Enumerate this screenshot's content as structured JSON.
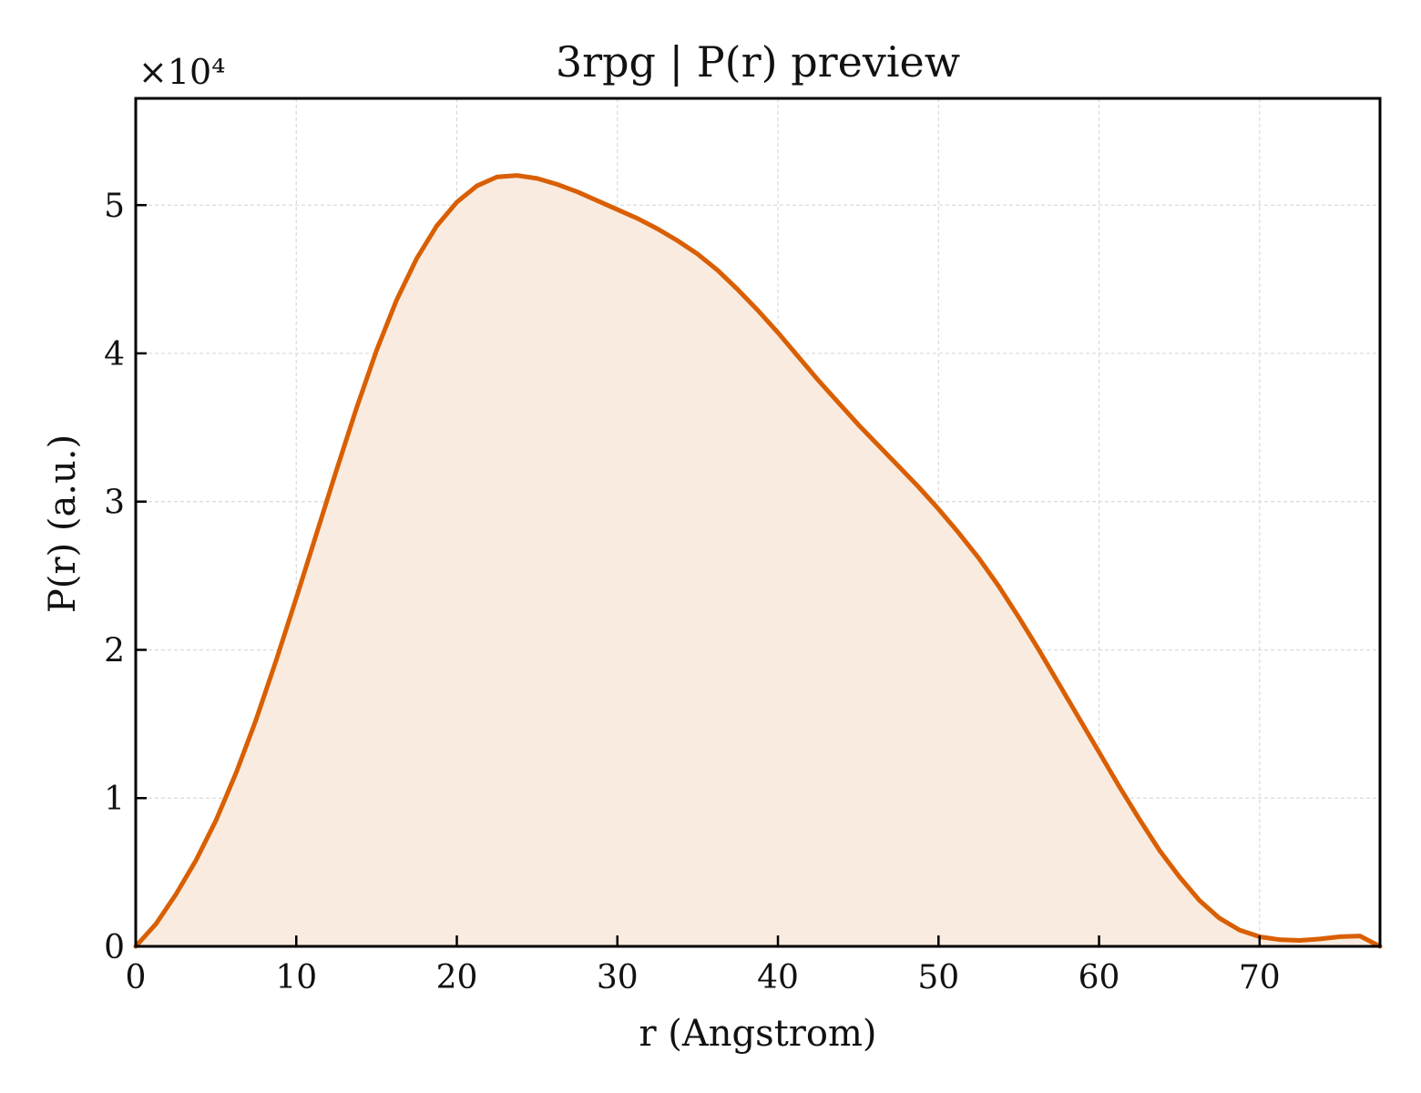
{
  "chart_data": {
    "type": "area",
    "title": "3rpg | P(r) preview",
    "xlabel": "r (Angstrom)",
    "ylabel": "P(r) (a.u.)",
    "y_multiplier": "×10⁴",
    "xlim": [
      0,
      77.5
    ],
    "ylim": [
      0,
      57200
    ],
    "x_ticks": [
      0,
      10,
      20,
      30,
      40,
      50,
      60,
      70
    ],
    "x_tick_labels": [
      "0",
      "10",
      "20",
      "30",
      "40",
      "50",
      "60",
      "70"
    ],
    "y_ticks": [
      0,
      10000,
      20000,
      30000,
      40000,
      50000
    ],
    "y_tick_labels": [
      "0",
      "1",
      "2",
      "3",
      "4",
      "5"
    ],
    "grid": true,
    "colors": {
      "line": "#d95f02",
      "fill": "#f9ebe0",
      "grid": "#d9d9d9",
      "axis": "#000000"
    },
    "series": [
      {
        "x": [
          0,
          1.25,
          2.5,
          3.75,
          5,
          6.25,
          7.5,
          8.75,
          10,
          11.25,
          12.5,
          13.75,
          15,
          16.25,
          17.5,
          18.75,
          20,
          21.25,
          22.5,
          23.75,
          25,
          26.25,
          27.5,
          28.75,
          30,
          31.25,
          32.5,
          33.75,
          35,
          36.25,
          37.5,
          38.75,
          40,
          41.25,
          42.5,
          43.75,
          45,
          46.25,
          47.5,
          48.75,
          50,
          51.25,
          52.5,
          53.75,
          55,
          56.25,
          57.5,
          58.75,
          60,
          61.25,
          62.5,
          63.75,
          65,
          66.25,
          67.5,
          68.75,
          70,
          71.25,
          72.5,
          73.75,
          75,
          76.25,
          77.5
        ],
        "y": [
          0,
          1500,
          3500,
          5800,
          8500,
          11700,
          15300,
          19300,
          23500,
          27800,
          32100,
          36300,
          40200,
          43600,
          46400,
          48600,
          50200,
          51300,
          51900,
          52000,
          51800,
          51400,
          50900,
          50300,
          49700,
          49100,
          48400,
          47600,
          46700,
          45600,
          44300,
          42900,
          41400,
          39800,
          38200,
          36700,
          35200,
          33800,
          32400,
          31000,
          29500,
          27900,
          26200,
          24300,
          22200,
          20000,
          17700,
          15400,
          13100,
          10800,
          8600,
          6500,
          4700,
          3100,
          1900,
          1100,
          650,
          450,
          400,
          500,
          650,
          700,
          0
        ]
      }
    ]
  }
}
